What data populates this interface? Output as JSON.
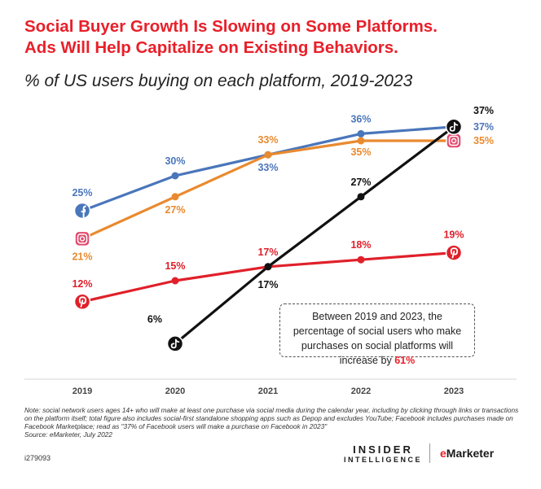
{
  "header": {
    "title_line1": "Social Buyer Growth Is Slowing on Some Platforms.",
    "title_line2": "Ads Will Help Capitalize on Existing Behaviors.",
    "subtitle": "% of US users buying on each platform, 2019-2023"
  },
  "chart_data": {
    "type": "line",
    "title": "Social Buyer Growth Is Slowing on Some Platforms. Ads Will Help Capitalize on Existing Behaviors.",
    "subtitle": "% of US users buying on each platform, 2019-2023",
    "x": [
      "2019",
      "2020",
      "2021",
      "2022",
      "2023"
    ],
    "ylim": [
      0,
      40
    ],
    "grid": false,
    "legend": "none",
    "series": [
      {
        "icon": "facebook-icon",
        "color": "#4a76bb",
        "x": [
          "2019",
          "2020",
          "2021",
          "2022",
          "2023"
        ],
        "values": [
          25,
          30,
          33,
          36,
          37
        ],
        "labels": [
          "25%",
          "30%",
          "33%",
          "36%",
          "37%"
        ]
      },
      {
        "icon": "instagram-icon",
        "color": "#e98a2f",
        "x": [
          "2019",
          "2020",
          "2021",
          "2022",
          "2023"
        ],
        "values": [
          21,
          27,
          33,
          35,
          35
        ],
        "labels": [
          "21%",
          "27%",
          "33%",
          "35%",
          "35%"
        ]
      },
      {
        "icon": "pinterest-icon",
        "color": "#e0202a",
        "x": [
          "2019",
          "2020",
          "2021",
          "2022",
          "2023"
        ],
        "values": [
          12,
          15,
          17,
          18,
          19
        ],
        "labels": [
          "12%",
          "15%",
          "17%",
          "18%",
          "19%"
        ]
      },
      {
        "icon": "tiktok-icon",
        "color": "#111111",
        "x": [
          "2020",
          "2021",
          "2022",
          "2023"
        ],
        "values": [
          6,
          17,
          27,
          37
        ],
        "labels": [
          "6%",
          "17%",
          "27%",
          "37%"
        ]
      }
    ]
  },
  "callout": {
    "text": "Between 2019 and 2023, the percentage of social users who make purchases on social platforms will increase by",
    "highlight": "61%"
  },
  "footer": {
    "note": "Note: social network users ages 14+ who will make at least one purchase via social media during the calendar year, including by clicking through links or transactions on the platform itself; total figure also includes social-first standalone shopping apps such as Depop and excludes YouTube; Facebook includes purchases made on Facebook Marketplace; read as \"37% of Facebook users will make a purchase on Facebook in 2023\"",
    "source": "Source: eMarketer, July 2022",
    "chart_id": "i279093",
    "brand_line1": "INSIDER",
    "brand_line2": "INTELLIGENCE",
    "emarketer_e": "e",
    "emarketer_rest": "Marketer"
  }
}
